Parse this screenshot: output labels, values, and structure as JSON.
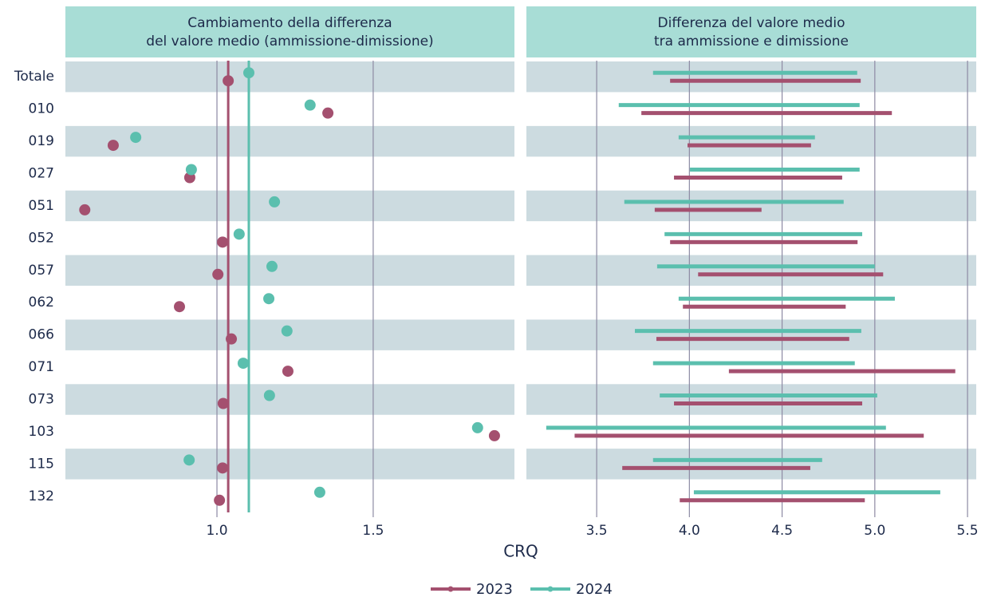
{
  "xlabel": "CRQ",
  "chart_data": [
    {
      "type": "dot",
      "title": [
        "Cambiamento della differenza",
        "del valore medio (ammissione-dimissione)"
      ],
      "categories": [
        "Totale",
        "010",
        "019",
        "027",
        "051",
        "052",
        "057",
        "062",
        "066",
        "071",
        "073",
        "103",
        "115",
        "132"
      ],
      "xlim": [
        0.515,
        1.952
      ],
      "xticks": [
        {
          "value": 1,
          "label": "1.0"
        },
        1.5
      ],
      "grid": true,
      "series": [
        {
          "name": "2023",
          "color": "#a4506f",
          "mean": 1.036,
          "values": [
            1.036,
            1.355,
            0.668,
            0.913,
            0.577,
            1.018,
            1.003,
            0.88,
            1.046,
            1.227,
            1.02,
            1.888,
            1.018,
            1.008
          ]
        },
        {
          "name": "2024",
          "color": "#5bbfae",
          "mean": 1.102,
          "values": [
            1.102,
            1.298,
            0.74,
            0.918,
            1.184,
            1.071,
            1.176,
            1.166,
            1.224,
            1.084,
            1.168,
            1.834,
            0.911,
            1.329
          ]
        }
      ]
    },
    {
      "type": "range",
      "title": [
        "Differenza del valore medio",
        "tra ammissione e dimissione"
      ],
      "categories": [
        "Totale",
        "010",
        "019",
        "027",
        "051",
        "052",
        "057",
        "062",
        "066",
        "071",
        "073",
        "103",
        "115",
        "132"
      ],
      "xlim": [
        3.121,
        5.547
      ],
      "xticks": [
        3.5,
        {
          "value": 4,
          "label": "4.0"
        },
        4.5,
        {
          "value": 5,
          "label": "5.0"
        },
        5.5
      ],
      "grid": true,
      "series": [
        {
          "name": "2023",
          "color": "#a4506f",
          "start": [
            3.896,
            3.741,
            3.99,
            3.917,
            3.813,
            3.896,
            4.047,
            3.965,
            3.822,
            4.213,
            3.917,
            3.381,
            3.638,
            3.948
          ],
          "end": [
            4.924,
            5.092,
            4.656,
            4.824,
            4.389,
            4.907,
            5.045,
            4.843,
            4.862,
            5.434,
            4.932,
            5.264,
            4.652,
            4.946
          ]
        },
        {
          "name": "2024",
          "color": "#5bbfae",
          "start": [
            3.804,
            3.619,
            3.942,
            4.003,
            3.649,
            3.866,
            3.826,
            3.942,
            3.706,
            3.804,
            3.84,
            3.228,
            3.804,
            4.024
          ],
          "end": [
            4.905,
            4.918,
            4.677,
            4.918,
            4.832,
            4.932,
            5.0,
            5.108,
            4.927,
            4.892,
            5.013,
            5.06,
            4.716,
            5.353
          ]
        }
      ]
    }
  ]
}
